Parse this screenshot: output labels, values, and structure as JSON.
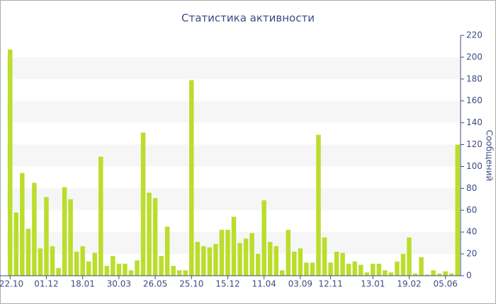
{
  "chart_data": {
    "type": "bar",
    "title": "Статистика активности",
    "y_label": "Сообщений",
    "categories": [
      "22.10",
      null,
      null,
      null,
      null,
      null,
      "01.12",
      null,
      null,
      null,
      null,
      null,
      "18.01",
      null,
      null,
      null,
      null,
      null,
      "30.03",
      null,
      null,
      null,
      null,
      null,
      "26.05",
      null,
      null,
      null,
      null,
      null,
      "25.10",
      null,
      null,
      null,
      null,
      null,
      "15.12",
      null,
      null,
      null,
      null,
      null,
      "11.04",
      null,
      null,
      null,
      null,
      null,
      "03.09",
      null,
      null,
      null,
      null,
      "12.11",
      null,
      null,
      null,
      null,
      null,
      null,
      "13.01",
      null,
      null,
      null,
      null,
      null,
      "19.02",
      null,
      null,
      null,
      null,
      null,
      "05.06",
      null,
      null
    ],
    "values": [
      207,
      58,
      94,
      43,
      85,
      25,
      72,
      27,
      7,
      81,
      70,
      22,
      27,
      13,
      21,
      109,
      9,
      18,
      11,
      11,
      5,
      14,
      131,
      76,
      71,
      18,
      45,
      9,
      5,
      5,
      179,
      31,
      27,
      26,
      29,
      42,
      42,
      54,
      30,
      34,
      39,
      20,
      69,
      31,
      27,
      5,
      42,
      22,
      25,
      12,
      12,
      129,
      35,
      12,
      22,
      21,
      11,
      13,
      10,
      3,
      11,
      11,
      5,
      3,
      13,
      20,
      35,
      2,
      17,
      1,
      5,
      2,
      4,
      2,
      120
    ],
    "color": "#bbdd2c",
    "ylim": [
      0,
      220
    ],
    "yticks": [
      0,
      20,
      40,
      60,
      80,
      100,
      120,
      140,
      160,
      180,
      200,
      220
    ],
    "grid": "bands",
    "y_axis_side": "right"
  }
}
